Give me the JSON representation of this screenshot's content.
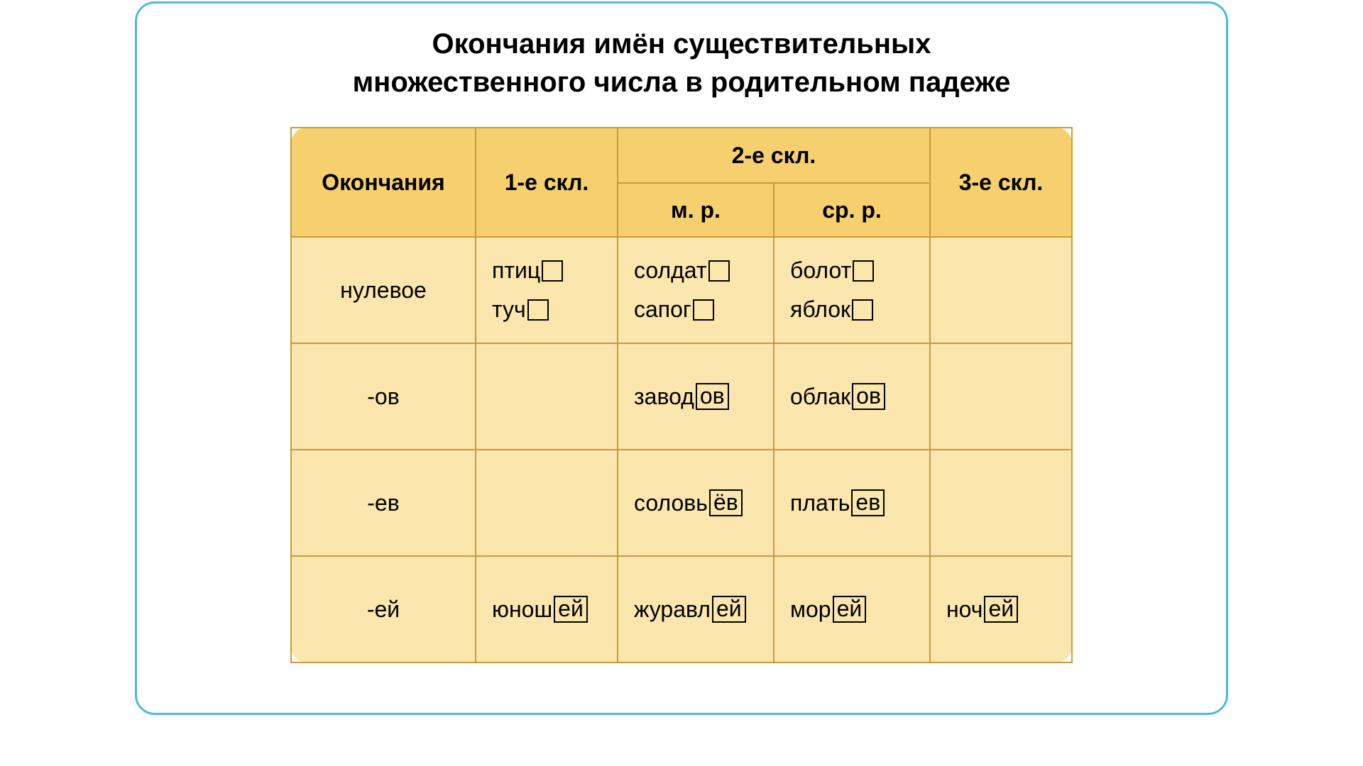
{
  "title_line1": "Окончания имён существительных",
  "title_line2": "множественного числа в родительном падеже",
  "headers": {
    "col0": "Окончания",
    "col1": "1-е скл.",
    "col2group": "2-е скл.",
    "col2a": "м. р.",
    "col2b": "ср. р.",
    "col3": "3-е скл."
  },
  "rows": {
    "r0": {
      "label": "нулевое",
      "c1": [
        {
          "stem": "птиц",
          "suffix": ""
        },
        {
          "stem": "туч",
          "suffix": ""
        }
      ],
      "c2": [
        {
          "stem": "солдат",
          "suffix": ""
        },
        {
          "stem": "сапог",
          "suffix": ""
        }
      ],
      "c3": [
        {
          "stem": "болот",
          "suffix": ""
        },
        {
          "stem": "яблок",
          "suffix": ""
        }
      ],
      "c4": []
    },
    "r1": {
      "label": "-ов",
      "c1": [],
      "c2": [
        {
          "stem": "завод",
          "suffix": "ов"
        }
      ],
      "c3": [
        {
          "stem": "облак",
          "suffix": "ов"
        }
      ],
      "c4": []
    },
    "r2": {
      "label": "-ев",
      "c1": [],
      "c2": [
        {
          "stem": "соловь",
          "suffix": "ёв"
        }
      ],
      "c3": [
        {
          "stem": "плать",
          "suffix": "ев"
        }
      ],
      "c4": []
    },
    "r3": {
      "label": "-ей",
      "c1": [
        {
          "stem": "юнош",
          "suffix": "ей"
        }
      ],
      "c2": [
        {
          "stem": "журавл",
          "suffix": "ей"
        }
      ],
      "c3": [
        {
          "stem": "мор",
          "suffix": "ей"
        }
      ],
      "c4": [
        {
          "stem": "ноч",
          "suffix": "ей"
        }
      ]
    }
  },
  "colors": {
    "card_border": "#4fb6e8",
    "table_border": "#c99a3a",
    "header_bg": "#f6d06f",
    "cell_bg": "#fbe6ad",
    "text": "#000000",
    "box_border": "#000000"
  }
}
